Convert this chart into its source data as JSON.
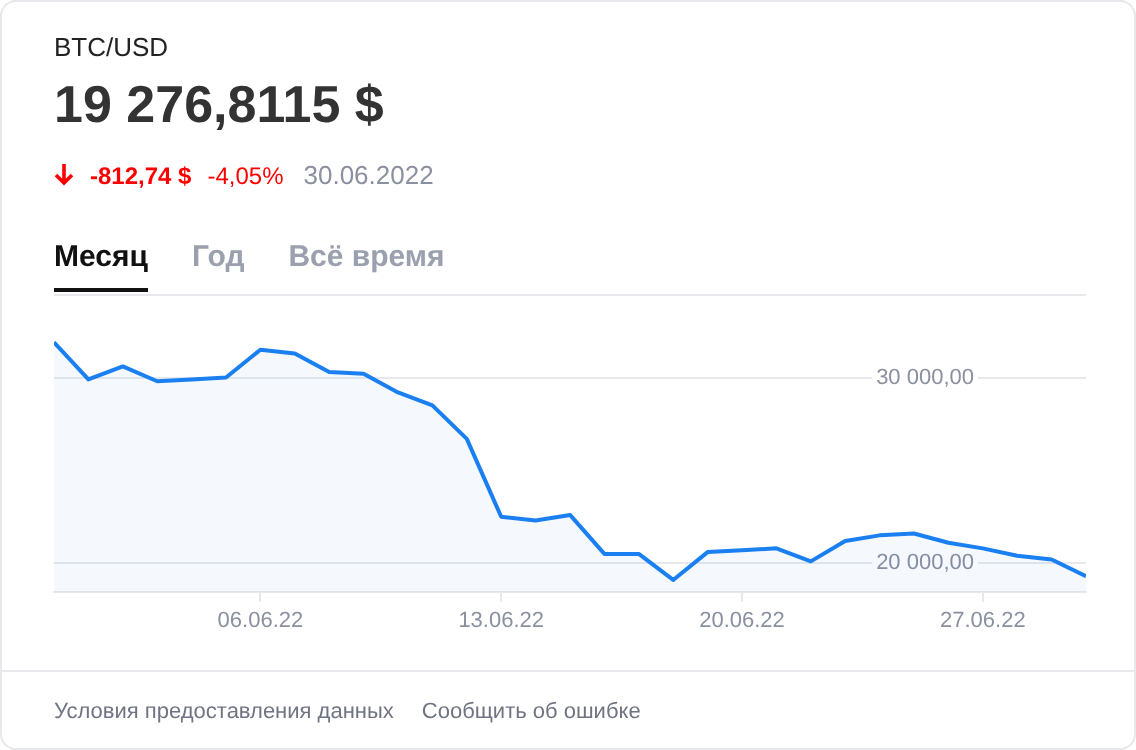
{
  "chart_data": {
    "type": "area",
    "title": "BTC/USD",
    "subtitle": "19 276,8115 $",
    "annotations": [
      "-812,74 $",
      "-4,05%",
      "30.06.2022",
      "Месяц",
      "Год",
      "Всё время",
      "Условия предоставления данных",
      "Сообщить об ошибке"
    ],
    "x": [
      "2022-05-31",
      "2022-06-01",
      "2022-06-02",
      "2022-06-03",
      "2022-06-04",
      "2022-06-05",
      "2022-06-06",
      "2022-06-07",
      "2022-06-08",
      "2022-06-09",
      "2022-06-10",
      "2022-06-11",
      "2022-06-12",
      "2022-06-13",
      "2022-06-14",
      "2022-06-15",
      "2022-06-16",
      "2022-06-17",
      "2022-06-18",
      "2022-06-19",
      "2022-06-20",
      "2022-06-21",
      "2022-06-22",
      "2022-06-23",
      "2022-06-24",
      "2022-06-25",
      "2022-06-26",
      "2022-06-27",
      "2022-06-28",
      "2022-06-29",
      "2022-06-30"
    ],
    "series": [
      {
        "color": "#1a7ff0",
        "values": [
          31900,
          29900,
          30600,
          29800,
          29900,
          30000,
          31500,
          31300,
          30300,
          30200,
          29200,
          28500,
          26700,
          22500,
          22300,
          22600,
          20500,
          20500,
          19100,
          20600,
          20700,
          20800,
          20100,
          21200,
          21500,
          21600,
          21100,
          20800,
          20400,
          20200,
          19300
        ]
      }
    ],
    "xlim": [
      "2022-05-31",
      "2022-06-30"
    ],
    "xticks": [
      {
        "value": "2022-06-06",
        "label": "06.06.22"
      },
      {
        "value": "2022-06-13",
        "label": "13.06.22"
      },
      {
        "value": "2022-06-20",
        "label": "20.06.22"
      },
      {
        "value": "2022-06-27",
        "label": "27.06.22"
      }
    ],
    "ylim": [
      18450,
      34500
    ],
    "yticks": [
      {
        "value": 20000,
        "label": "20 000,00"
      },
      {
        "value": 30000,
        "label": "30 000,00"
      }
    ],
    "grid": "y",
    "legend": false,
    "marker": "none",
    "line_style": "solid"
  }
}
